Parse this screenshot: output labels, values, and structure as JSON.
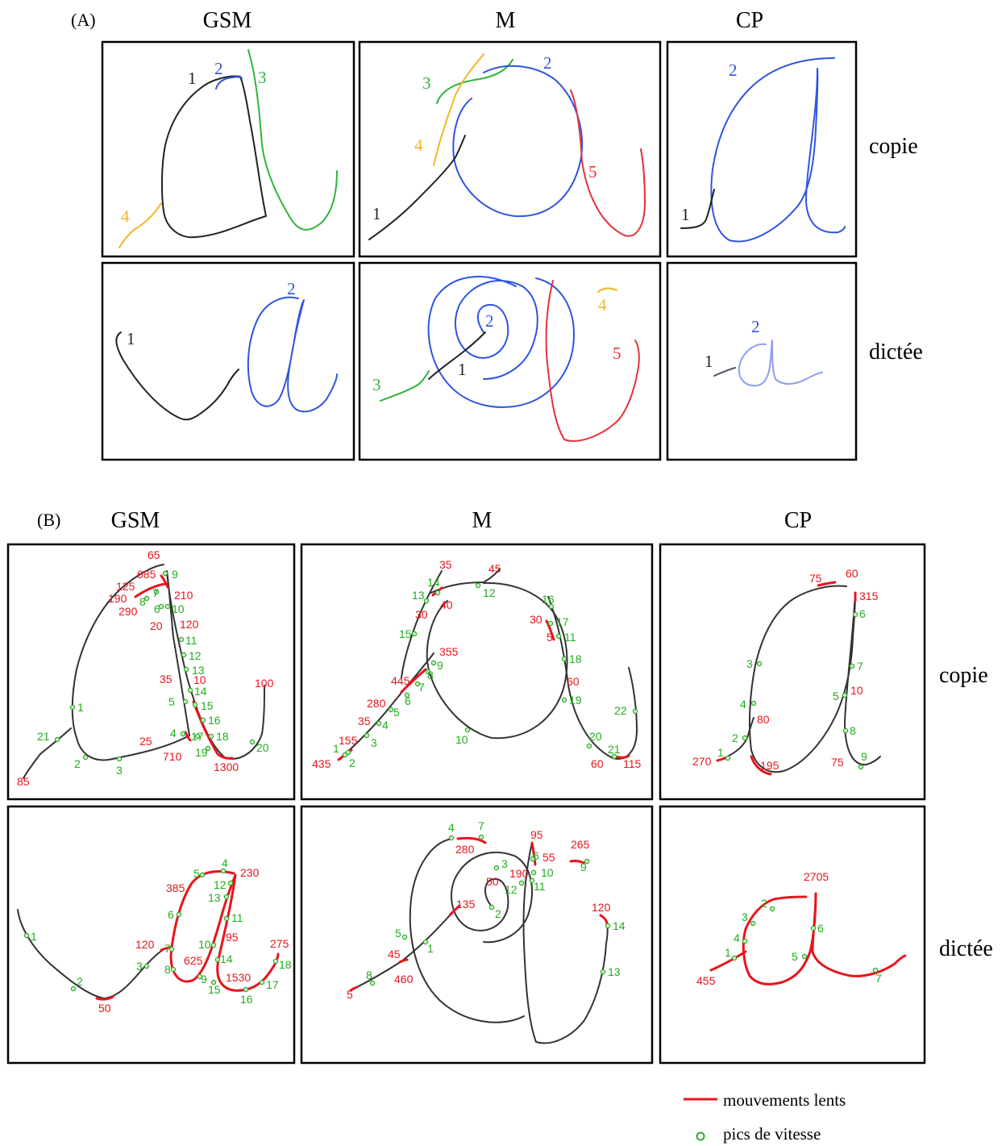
{
  "partA": {
    "label": "(A)",
    "columns": [
      "GSM",
      "M",
      "CP"
    ],
    "rows": [
      "copie",
      "dictée"
    ],
    "stroke_colors": {
      "1": "#222222",
      "2": "#2f55e0",
      "3": "#2db53a",
      "4": "#f2b52a",
      "5": "#e8303a"
    },
    "panels": {
      "gsm_copie": [
        "1",
        "2",
        "3",
        "4"
      ],
      "m_copie": [
        "3",
        "2",
        "4",
        "5",
        "1"
      ],
      "cp_copie": [
        "2",
        "1"
      ],
      "gsm_dictee": [
        "1",
        "2"
      ],
      "m_dictee": [
        "2",
        "4",
        "5",
        "3",
        "1"
      ],
      "cp_dictee": [
        "2",
        "1"
      ]
    }
  },
  "partB": {
    "label": "(B)",
    "columns": [
      "GSM",
      "M",
      "CP"
    ],
    "rows": [
      "copie",
      "dictée"
    ],
    "annotations": {
      "gsm_copie": {
        "red": [
          "65",
          "685",
          "125",
          "190",
          "290",
          "210",
          "120",
          "20",
          "35",
          "10",
          "25",
          "710",
          "1300",
          "100",
          "85"
        ],
        "green": [
          "9",
          "7",
          "8",
          "6",
          "10",
          "11",
          "12",
          "13",
          "14",
          "5",
          "15",
          "16",
          "4",
          "17",
          "18",
          "19",
          "20",
          "1",
          "21",
          "2",
          "3"
        ]
      },
      "m_copie": {
        "red": [
          "35",
          "45",
          "40",
          "30",
          "355",
          "445",
          "280",
          "35",
          "155",
          "435",
          "30",
          "5",
          "60",
          "60",
          "115"
        ],
        "green": [
          "14",
          "12",
          "13",
          "15",
          "9",
          "8",
          "7",
          "6",
          "5",
          "4",
          "3",
          "1",
          "2",
          "16",
          "17",
          "11",
          "18",
          "19",
          "10",
          "22",
          "20",
          "21"
        ]
      },
      "cp_copie": {
        "red": [
          "75",
          "60",
          "315",
          "10",
          "80",
          "270",
          "195",
          "75"
        ],
        "green": [
          "6",
          "3",
          "7",
          "4",
          "5",
          "8",
          "2",
          "1",
          "9"
        ]
      },
      "gsm_dictee": {
        "red": [
          "385",
          "230",
          "120",
          "95",
          "625",
          "275",
          "1530",
          "50"
        ],
        "green": [
          "4",
          "5",
          "12",
          "13",
          "6",
          "11",
          "7",
          "10",
          "14",
          "8",
          "9",
          "15",
          "18",
          "17",
          "16",
          "1",
          "3",
          "2"
        ]
      },
      "m_dictee": {
        "red": [
          "95",
          "280",
          "55",
          "190",
          "50",
          "265",
          "135",
          "120",
          "45",
          "460",
          "5"
        ],
        "green": [
          "4",
          "7",
          "3",
          "6",
          "10",
          "12",
          "11",
          "9",
          "2",
          "14",
          "5",
          "1",
          "8",
          "13"
        ]
      },
      "cp_dictee": {
        "red": [
          "2705",
          "455"
        ],
        "green": [
          "2",
          "3",
          "6",
          "4",
          "1",
          "5",
          "7"
        ]
      }
    }
  },
  "legend": {
    "slow_label": "mouvements lents",
    "peak_label": "pics de vitesse",
    "slow_color": "#e8141b",
    "peak_color": "#2fa82a"
  }
}
